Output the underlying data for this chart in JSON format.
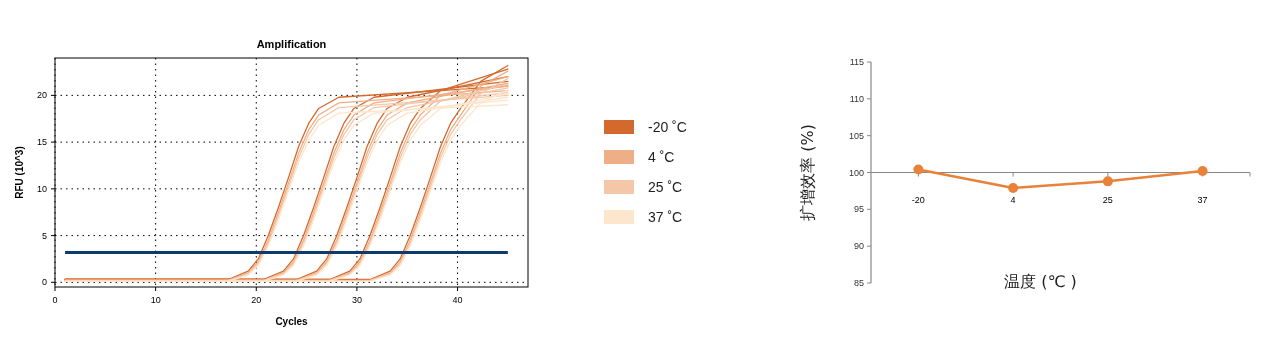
{
  "chart_data": [
    {
      "type": "line",
      "title": "Amplification",
      "xlabel": "Cycles",
      "ylabel": "RFU (10^3)",
      "xlim": [
        0,
        47
      ],
      "xticks": [
        0,
        10,
        20,
        30,
        40
      ],
      "ylim": [
        -0.5,
        24
      ],
      "yticks": [
        0,
        5,
        10,
        15,
        20
      ],
      "grid": true,
      "legend": "right",
      "marker": "none",
      "line_style": "solid",
      "ref_lines": [
        {
          "axis": "y",
          "value": 3.2,
          "color": "#0d3b6e",
          "line_style": "solid"
        }
      ],
      "series": [
        {
          "name": "-20 ˚C",
          "color": "#d4692e",
          "x": [
            1,
            17.2,
            19.2,
            20.2,
            21.2,
            22.2,
            23.2,
            24.2,
            25.2,
            26.2,
            28.2,
            45
          ],
          "values": [
            0.3,
            0.3,
            1.2,
            2.5,
            5.0,
            8.0,
            11.2,
            14.5,
            17.0,
            18.6,
            19.8,
            21.0
          ]
        },
        {
          "color": "#d4692e",
          "x": [
            1,
            20.7,
            22.7,
            23.7,
            24.7,
            25.7,
            26.7,
            27.7,
            28.7,
            29.7,
            31.7,
            45
          ],
          "values": [
            0.3,
            0.3,
            1.2,
            2.5,
            5.0,
            8.0,
            11.2,
            14.5,
            17.0,
            18.6,
            19.8,
            21.5
          ]
        },
        {
          "color": "#d4692e",
          "x": [
            1,
            24,
            26,
            27,
            28,
            29,
            30,
            31,
            32,
            33,
            35,
            45
          ],
          "values": [
            0.3,
            0.3,
            1.2,
            2.5,
            5.0,
            8.0,
            11.2,
            14.5,
            17.0,
            18.6,
            19.8,
            22.0
          ]
        },
        {
          "color": "#d4692e",
          "x": [
            1,
            27.3,
            29.3,
            30.3,
            31.3,
            32.3,
            33.3,
            34.3,
            35.3,
            36.3,
            38.3,
            45
          ],
          "values": [
            0.3,
            0.3,
            1.2,
            2.5,
            5.0,
            8.0,
            11.2,
            14.5,
            17.0,
            18.6,
            20.5,
            22.8
          ]
        },
        {
          "color": "#d4692e",
          "x": [
            1,
            31.3,
            33.3,
            34.3,
            35.3,
            36.3,
            37.3,
            38.3,
            39.3,
            40.3,
            42.3,
            45
          ],
          "values": [
            0.3,
            0.3,
            1.2,
            2.5,
            5.0,
            8.0,
            11.2,
            14.5,
            17.0,
            18.6,
            21.5,
            23.2
          ]
        },
        {
          "name": "4 ˚C",
          "color": "#eeaf86",
          "x": [
            1,
            17.2,
            19.2,
            20.2,
            21.2,
            22.2,
            23.2,
            24.2,
            25.2,
            26.2,
            28.2,
            45
          ],
          "values": [
            0.2,
            0.2,
            1.0,
            2.2,
            4.5,
            7.5,
            10.6,
            13.8,
            16.3,
            17.9,
            19.2,
            20.5
          ]
        },
        {
          "color": "#eeaf86",
          "x": [
            1,
            20.7,
            22.7,
            23.7,
            24.7,
            25.7,
            26.7,
            27.7,
            28.7,
            29.7,
            31.7,
            45
          ],
          "values": [
            0.2,
            0.2,
            1.0,
            2.2,
            4.5,
            7.5,
            10.6,
            13.8,
            16.3,
            17.9,
            19.2,
            21.0
          ]
        },
        {
          "color": "#eeaf86",
          "x": [
            1,
            24,
            26,
            27,
            28,
            29,
            30,
            31,
            32,
            33,
            35,
            45
          ],
          "values": [
            0.2,
            0.2,
            1.0,
            2.2,
            4.5,
            7.5,
            10.6,
            13.8,
            16.3,
            17.9,
            19.2,
            21.3
          ]
        },
        {
          "color": "#eeaf86",
          "x": [
            1,
            27.3,
            29.3,
            30.3,
            31.3,
            32.3,
            33.3,
            34.3,
            35.3,
            36.3,
            38.3,
            45
          ],
          "values": [
            0.2,
            0.2,
            1.0,
            2.2,
            4.5,
            7.5,
            10.6,
            13.8,
            16.3,
            17.9,
            20.0,
            22.0
          ]
        },
        {
          "color": "#eeaf86",
          "x": [
            1,
            31.3,
            33.3,
            34.3,
            35.3,
            36.3,
            37.3,
            38.3,
            39.3,
            40.3,
            42.3,
            45
          ],
          "values": [
            0.2,
            0.2,
            1.0,
            2.2,
            4.5,
            7.5,
            10.6,
            13.8,
            16.3,
            17.9,
            21.0,
            22.6
          ]
        },
        {
          "name": "25 ˚C",
          "color": "#f3c7a8",
          "x": [
            1,
            17.2,
            19.2,
            20.2,
            21.2,
            22.2,
            23.2,
            24.2,
            25.2,
            26.2,
            28.2,
            45
          ],
          "values": [
            0.1,
            0.2,
            0.9,
            2.0,
            4.2,
            7.1,
            10.2,
            13.3,
            15.8,
            17.4,
            18.7,
            20.0
          ]
        },
        {
          "color": "#f3c7a8",
          "x": [
            1,
            20.7,
            22.7,
            23.7,
            24.7,
            25.7,
            26.7,
            27.7,
            28.7,
            29.7,
            31.7,
            45
          ],
          "values": [
            0.1,
            0.2,
            0.9,
            2.0,
            4.2,
            7.1,
            10.2,
            13.3,
            15.8,
            17.4,
            18.7,
            20.3
          ]
        },
        {
          "color": "#f3c7a8",
          "x": [
            1,
            24,
            26,
            27,
            28,
            29,
            30,
            31,
            32,
            33,
            35,
            45
          ],
          "values": [
            0.1,
            0.2,
            0.9,
            2.0,
            4.2,
            7.1,
            10.2,
            13.3,
            15.8,
            17.4,
            18.7,
            20.8
          ]
        },
        {
          "color": "#f3c7a8",
          "x": [
            1,
            27.3,
            29.3,
            30.3,
            31.3,
            32.3,
            33.3,
            34.3,
            35.3,
            36.3,
            38.3,
            45
          ],
          "values": [
            0.1,
            0.2,
            0.9,
            2.0,
            4.2,
            7.1,
            10.2,
            13.3,
            15.8,
            17.4,
            19.4,
            21.2
          ]
        },
        {
          "color": "#f3c7a8",
          "x": [
            1,
            31.3,
            33.3,
            34.3,
            35.3,
            36.3,
            37.3,
            38.3,
            39.3,
            40.3,
            42.3,
            45
          ],
          "values": [
            0.1,
            0.2,
            0.9,
            2.0,
            4.2,
            7.1,
            10.2,
            13.3,
            15.8,
            17.4,
            20.2,
            21.8
          ]
        },
        {
          "name": "37 ˚C",
          "color": "#fce6cc",
          "x": [
            1,
            17.2,
            19.2,
            20.2,
            21.2,
            22.2,
            23.2,
            24.2,
            25.2,
            26.2,
            28.2,
            45
          ],
          "values": [
            0.1,
            0.1,
            0.8,
            1.8,
            3.9,
            6.7,
            9.8,
            12.8,
            15.2,
            16.8,
            18.1,
            19.0
          ]
        },
        {
          "color": "#fce6cc",
          "x": [
            1,
            20.7,
            22.7,
            23.7,
            24.7,
            25.7,
            26.7,
            27.7,
            28.7,
            29.7,
            31.7,
            45
          ],
          "values": [
            0.1,
            0.1,
            0.8,
            1.8,
            3.9,
            6.7,
            9.8,
            12.8,
            15.2,
            16.8,
            18.1,
            19.5
          ]
        },
        {
          "color": "#fce6cc",
          "x": [
            1,
            24,
            26,
            27,
            28,
            29,
            30,
            31,
            32,
            33,
            35,
            45
          ],
          "values": [
            0.1,
            0.1,
            0.8,
            1.8,
            3.9,
            6.7,
            9.8,
            12.8,
            15.2,
            16.8,
            18.1,
            19.8
          ]
        },
        {
          "color": "#fce6cc",
          "x": [
            1,
            27.3,
            29.3,
            30.3,
            31.3,
            32.3,
            33.3,
            34.3,
            35.3,
            36.3,
            38.3,
            45
          ],
          "values": [
            0.1,
            0.1,
            0.8,
            1.8,
            3.9,
            6.7,
            9.8,
            12.8,
            15.2,
            16.8,
            18.6,
            20.2
          ]
        },
        {
          "color": "#fce6cc",
          "x": [
            1,
            31.3,
            33.3,
            34.3,
            35.3,
            36.3,
            37.3,
            38.3,
            39.3,
            40.3,
            42.3,
            45
          ],
          "values": [
            0.1,
            0.1,
            0.8,
            1.8,
            3.9,
            6.7,
            9.8,
            12.8,
            15.2,
            16.8,
            19.2,
            20.6
          ]
        }
      ]
    },
    {
      "type": "line",
      "xlabel": "温度 (℃ )",
      "ylabel": "扩增效率 (%)",
      "categories": [
        "-20",
        "4",
        "25",
        "37"
      ],
      "ylim": [
        85,
        115
      ],
      "yticks": [
        85,
        90,
        95,
        100,
        105,
        110,
        115
      ],
      "grid": false,
      "marker": "circle",
      "line_style": "solid",
      "series": [
        {
          "color": "#e8813a",
          "values": [
            100.4,
            97.9,
            98.8,
            100.2
          ]
        }
      ]
    }
  ]
}
